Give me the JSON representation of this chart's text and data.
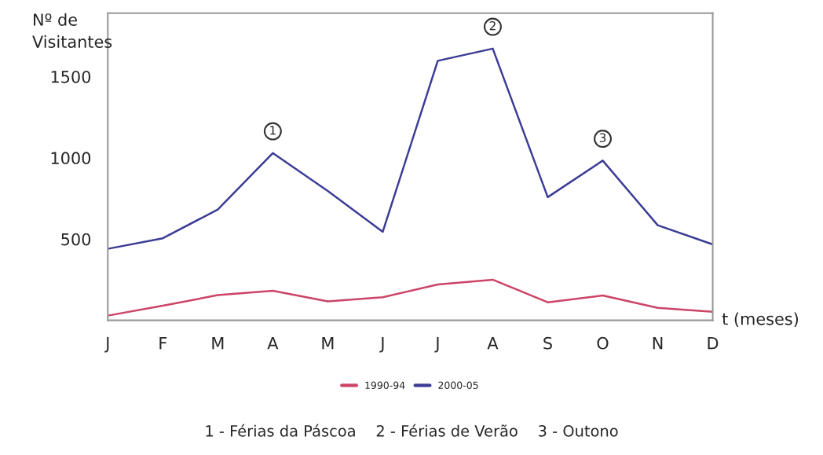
{
  "chart_data": {
    "type": "line",
    "ylabel": "Nº de\nVisitantes",
    "xlabel": "t (meses)",
    "categories": [
      "J",
      "F",
      "M",
      "A",
      "M",
      "J",
      "J",
      "A",
      "S",
      "O",
      "N",
      "D"
    ],
    "series": [
      {
        "name": "1990-94",
        "color": "#cc4466",
        "values": [
          29,
          90,
          155,
          182,
          117,
          142,
          221,
          250,
          111,
          153,
          77,
          52
        ]
      },
      {
        "name": "2000-05",
        "color": "#3c3c96",
        "values": [
          440,
          505,
          682,
          1029,
          796,
          545,
          1597,
          1672,
          758,
          983,
          585,
          467
        ]
      }
    ],
    "ylim": [
      0,
      1890
    ],
    "yticks": [
      500,
      1000,
      1500
    ],
    "annotations": [
      {
        "text": "1",
        "y": 1029
      },
      {
        "text": "2",
        "y": 1672
      },
      {
        "text": "3",
        "y": 983
      },
      "1 - Férias da Páscoa    2 - Férias de Verão    3 - Outono"
    ],
    "legend": "bottom",
    "grid": false,
    "marker": "none",
    "line_style": "solid"
  }
}
